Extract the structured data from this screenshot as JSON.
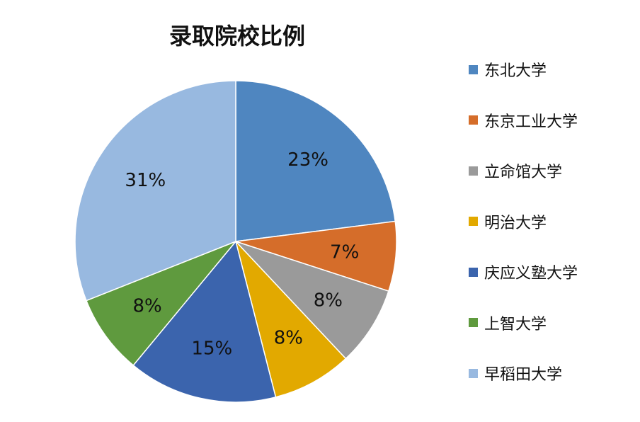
{
  "chart_data": {
    "type": "pie",
    "title": "录取院校比例",
    "categories": [
      "东北大学",
      "东京工业大学",
      "立命馆大学",
      "明治大学",
      "庆应义塾大学",
      "上智大学",
      "早稻田大学"
    ],
    "values": [
      23,
      7,
      8,
      8,
      15,
      8,
      31
    ],
    "data_labels": [
      "23%",
      "7%",
      "8%",
      "8%",
      "15%",
      "8%",
      "31%"
    ],
    "colors": [
      "#4F86C0",
      "#D56D2A",
      "#9A9A9A",
      "#E2A900",
      "#3B64AD",
      "#5F9A3E",
      "#98B9E0"
    ],
    "legend_position": "right",
    "start": "top",
    "direction": "clockwise"
  }
}
